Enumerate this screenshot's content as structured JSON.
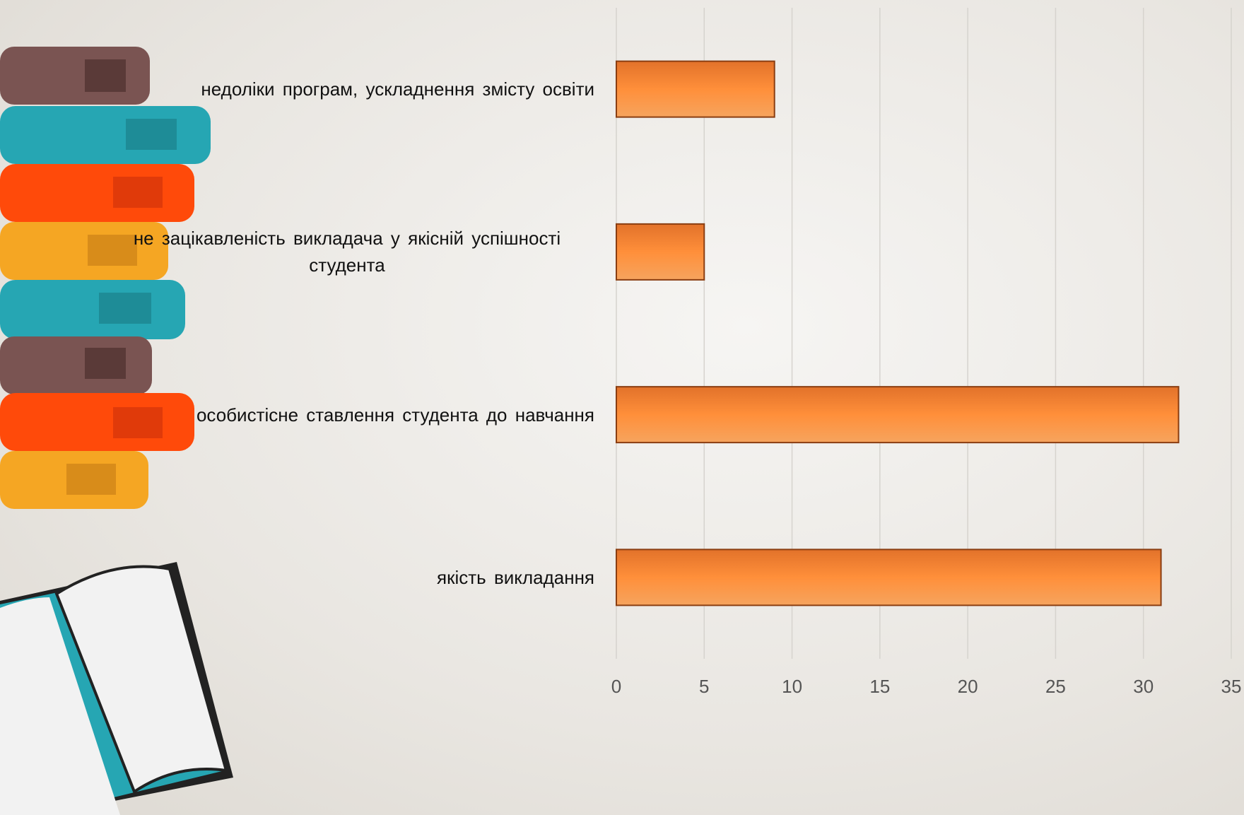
{
  "chart_data": {
    "type": "barh",
    "categories": [
      "недоліки програм, ускладнення змісту освіти",
      "не зацікавленість викладача у якісній успішності студента",
      "особистісне ставлення студента до навчання",
      "якість викладання"
    ],
    "values": [
      9,
      5,
      32,
      31
    ],
    "color": "#f7862f",
    "xlim": [
      0,
      35
    ],
    "xticks": [
      0,
      5,
      10,
      15,
      20,
      25,
      30,
      35
    ],
    "grid": true
  }
}
